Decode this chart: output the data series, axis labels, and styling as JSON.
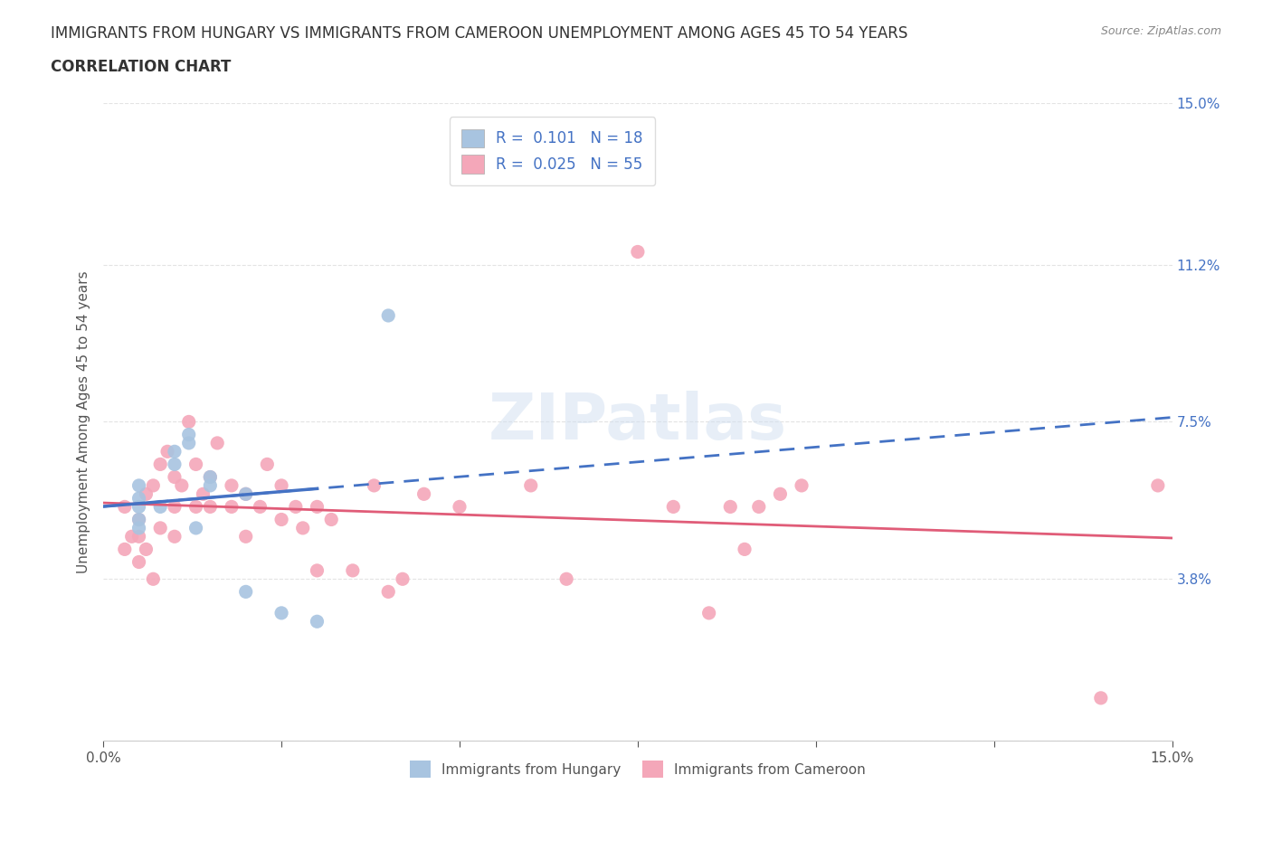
{
  "title_line1": "IMMIGRANTS FROM HUNGARY VS IMMIGRANTS FROM CAMEROON UNEMPLOYMENT AMONG AGES 45 TO 54 YEARS",
  "title_line2": "CORRELATION CHART",
  "source": "Source: ZipAtlas.com",
  "ylabel": "Unemployment Among Ages 45 to 54 years",
  "xlim": [
    0.0,
    0.15
  ],
  "ylim": [
    0.0,
    0.15
  ],
  "color_hungary": "#a8c4e0",
  "color_cameroon": "#f4a7b9",
  "trendline_color_hungary": "#4472c4",
  "trendline_color_cameroon": "#e05c78",
  "hungary_x": [
    0.005,
    0.005,
    0.005,
    0.005,
    0.005,
    0.008,
    0.01,
    0.01,
    0.012,
    0.012,
    0.013,
    0.015,
    0.015,
    0.02,
    0.02,
    0.025,
    0.03,
    0.04
  ],
  "hungary_y": [
    0.05,
    0.052,
    0.055,
    0.057,
    0.06,
    0.055,
    0.065,
    0.068,
    0.07,
    0.072,
    0.05,
    0.06,
    0.062,
    0.058,
    0.035,
    0.03,
    0.028,
    0.1
  ],
  "cameroon_x": [
    0.003,
    0.003,
    0.004,
    0.005,
    0.005,
    0.005,
    0.006,
    0.006,
    0.007,
    0.007,
    0.008,
    0.008,
    0.009,
    0.01,
    0.01,
    0.01,
    0.011,
    0.012,
    0.013,
    0.013,
    0.014,
    0.015,
    0.015,
    0.016,
    0.018,
    0.018,
    0.02,
    0.02,
    0.022,
    0.023,
    0.025,
    0.025,
    0.027,
    0.028,
    0.03,
    0.03,
    0.032,
    0.035,
    0.038,
    0.04,
    0.042,
    0.045,
    0.05,
    0.06,
    0.065,
    0.075,
    0.08,
    0.085,
    0.088,
    0.09,
    0.092,
    0.095,
    0.098,
    0.14,
    0.148
  ],
  "cameroon_y": [
    0.055,
    0.045,
    0.048,
    0.052,
    0.048,
    0.042,
    0.058,
    0.045,
    0.06,
    0.038,
    0.065,
    0.05,
    0.068,
    0.055,
    0.062,
    0.048,
    0.06,
    0.075,
    0.055,
    0.065,
    0.058,
    0.062,
    0.055,
    0.07,
    0.055,
    0.06,
    0.058,
    0.048,
    0.055,
    0.065,
    0.052,
    0.06,
    0.055,
    0.05,
    0.04,
    0.055,
    0.052,
    0.04,
    0.06,
    0.035,
    0.038,
    0.058,
    0.055,
    0.06,
    0.038,
    0.115,
    0.055,
    0.03,
    0.055,
    0.045,
    0.055,
    0.058,
    0.06,
    0.01,
    0.06
  ],
  "background_color": "#ffffff",
  "watermark": "ZIPatlas",
  "grid_color": "#e0e0e0"
}
